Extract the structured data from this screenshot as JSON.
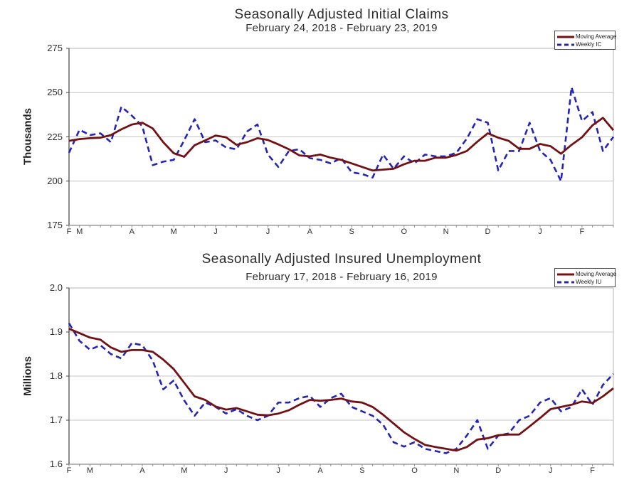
{
  "page": {
    "background": "#ffffff",
    "description_colors": {
      "moving_average_line": "#721214",
      "weekly_line": "#2525B2",
      "gridline": "#c4c4c4",
      "plot_border": "#b4b4b4",
      "y_axis_line": "#4d4d4d",
      "x_axis_line": "#8a8a8a",
      "text": "#2b2b2b"
    }
  },
  "chart_data": [
    {
      "type": "line",
      "title": "Seasonally Adjusted Initial Claims",
      "subtitle": "February 24, 2018 - February 23, 2019",
      "ylabel": "Thousands",
      "xlabel": "",
      "ylim": [
        175,
        275
      ],
      "yticks": [
        175,
        200,
        225,
        250,
        275
      ],
      "ytick_labels": [
        "175",
        "200",
        "225",
        "250",
        "275"
      ],
      "grid": true,
      "legend_position": "top-right",
      "x_unit": "week",
      "n_points": 53,
      "month_tick_labels": [
        "F",
        "M",
        "A",
        "M",
        "J",
        "J",
        "A",
        "S",
        "O",
        "N",
        "D",
        "J",
        "F"
      ],
      "month_tick_weeks": [
        0,
        1,
        6,
        10,
        14,
        19,
        23,
        27,
        32,
        36,
        40,
        45,
        49
      ],
      "series": [
        {
          "name": "Moving Average",
          "style": "solid",
          "color": "#721214",
          "values": [
            222.75,
            223.75,
            224.25,
            224.5,
            226,
            229.25,
            232,
            233,
            229.75,
            222,
            215.75,
            213.75,
            220.25,
            223,
            225.75,
            224.75,
            220.5,
            222,
            224.25,
            223.25,
            220.75,
            218,
            214.5,
            214,
            215,
            213.25,
            212,
            210,
            208,
            206,
            206.5,
            207,
            209.5,
            211.5,
            211.5,
            213.25,
            213.25,
            214.75,
            217,
            222.25,
            227,
            224.5,
            222.75,
            218.25,
            218.25,
            221,
            219.75,
            215.5,
            220.5,
            224.75,
            231.5,
            235.75,
            228.75
          ]
        },
        {
          "name": "Weekly IC",
          "style": "dashed",
          "color": "#2525B2",
          "values": [
            216,
            229,
            226,
            227,
            222,
            242,
            237,
            231,
            209,
            211,
            212,
            223,
            235,
            222,
            223,
            219,
            218,
            228,
            232,
            215,
            208,
            217,
            218,
            213,
            212,
            210,
            213,
            205,
            204,
            202,
            215,
            207,
            214,
            210,
            215,
            214,
            214,
            216,
            224,
            235,
            233,
            206,
            217,
            217,
            233,
            217,
            212,
            200,
            253,
            234,
            239,
            217,
            225
          ]
        }
      ]
    },
    {
      "type": "line",
      "title": "Seasonally Adjusted Insured Unemployment",
      "subtitle": "February 17, 2018 - February 16, 2019",
      "ylabel": "Millions",
      "xlabel": "",
      "ylim": [
        1.6,
        2.0
      ],
      "yticks": [
        1.6,
        1.7,
        1.8,
        1.9,
        2.0
      ],
      "ytick_labels": [
        "1.6",
        "1.7",
        "1.8",
        "1.9",
        "2.0"
      ],
      "grid": true,
      "legend_position": "top-right",
      "x_unit": "week",
      "n_points": 53,
      "month_tick_labels": [
        "F",
        "M",
        "A",
        "M",
        "J",
        "J",
        "A",
        "S",
        "O",
        "N",
        "D",
        "J",
        "F"
      ],
      "month_tick_weeks": [
        0,
        2,
        7,
        11,
        15,
        20,
        24,
        28,
        33,
        37,
        41,
        46,
        50
      ],
      "series": [
        {
          "name": "Moving Average",
          "style": "solid",
          "color": "#721214",
          "values": [
            1.9075,
            1.8975,
            1.8875,
            1.8825,
            1.865,
            1.855,
            1.859,
            1.859,
            1.855,
            1.8375,
            1.816,
            1.785,
            1.754,
            1.746,
            1.731,
            1.724,
            1.7275,
            1.72,
            1.7125,
            1.711,
            1.715,
            1.7225,
            1.735,
            1.746,
            1.744,
            1.746,
            1.749,
            1.7425,
            1.74,
            1.73,
            1.7125,
            1.6925,
            1.6725,
            1.6575,
            1.644,
            1.639,
            1.635,
            1.631,
            1.639,
            1.656,
            1.659,
            1.666,
            1.6675,
            1.6675,
            1.686,
            1.705,
            1.725,
            1.73,
            1.735,
            1.7425,
            1.739,
            1.754,
            1.7725
          ]
        },
        {
          "name": "Weekly IU",
          "style": "dashed",
          "color": "#2525B2",
          "values": [
            1.92,
            1.88,
            1.86,
            1.87,
            1.85,
            1.84,
            1.875,
            1.87,
            1.835,
            1.77,
            1.79,
            1.745,
            1.71,
            1.74,
            1.73,
            1.715,
            1.725,
            1.71,
            1.7,
            1.71,
            1.74,
            1.74,
            1.75,
            1.755,
            1.73,
            1.75,
            1.76,
            1.73,
            1.72,
            1.71,
            1.69,
            1.65,
            1.64,
            1.65,
            1.635,
            1.63,
            1.625,
            1.635,
            1.665,
            1.7,
            1.635,
            1.665,
            1.67,
            1.7,
            1.71,
            1.74,
            1.75,
            1.72,
            1.73,
            1.77,
            1.735,
            1.78,
            1.805
          ]
        }
      ]
    }
  ]
}
